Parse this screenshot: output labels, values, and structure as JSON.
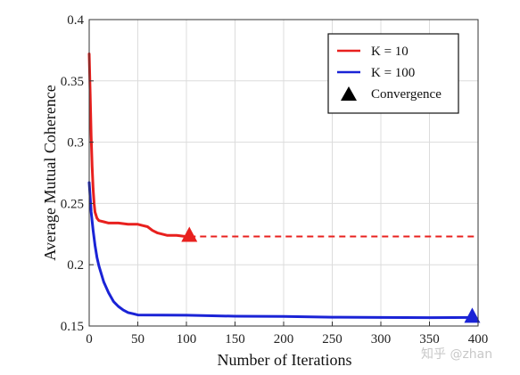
{
  "chart_data": {
    "type": "line",
    "xlabel": "Number of Iterations",
    "ylabel": "Average Mutual Coherence",
    "xlim": [
      0,
      400
    ],
    "ylim": [
      0.15,
      0.4
    ],
    "x_ticks": [
      "0",
      "50",
      "100",
      "150",
      "200",
      "250",
      "300",
      "350",
      "400"
    ],
    "y_ticks": [
      "0.15",
      "0.2",
      "0.25",
      "0.3",
      "0.35",
      "0.4"
    ],
    "grid": true,
    "legend_position": "top-right",
    "legend": [
      {
        "label": "K = 10",
        "marker": "line",
        "color": "#e8201e"
      },
      {
        "label": "K = 100",
        "marker": "line",
        "color": "#1a23d6"
      },
      {
        "label": "Convergence",
        "marker": "triangle",
        "color": "#000000"
      }
    ],
    "series": [
      {
        "name": "K = 10",
        "color": "#e8201e",
        "x": [
          0,
          1,
          2,
          3,
          4,
          5,
          6,
          8,
          10,
          15,
          20,
          30,
          40,
          50,
          55,
          60,
          65,
          70,
          75,
          80,
          90,
          100,
          103
        ],
        "y": [
          0.372,
          0.34,
          0.305,
          0.28,
          0.262,
          0.25,
          0.243,
          0.238,
          0.236,
          0.235,
          0.234,
          0.234,
          0.233,
          0.233,
          0.232,
          0.231,
          0.228,
          0.226,
          0.225,
          0.224,
          0.224,
          0.223,
          0.223
        ]
      },
      {
        "name": "K = 100",
        "color": "#1a23d6",
        "x": [
          0,
          1,
          2,
          4,
          6,
          8,
          10,
          15,
          20,
          25,
          30,
          35,
          40,
          45,
          50,
          100,
          150,
          200,
          250,
          300,
          350,
          394
        ],
        "y": [
          0.267,
          0.255,
          0.243,
          0.228,
          0.216,
          0.206,
          0.199,
          0.186,
          0.177,
          0.17,
          0.166,
          0.163,
          0.161,
          0.16,
          0.159,
          0.1588,
          0.158,
          0.1578,
          0.1572,
          0.157,
          0.1568,
          0.157
        ]
      }
    ],
    "continuation": {
      "series": "K = 10",
      "style": "dashed",
      "x": [
        103,
        400
      ],
      "y": [
        0.223,
        0.223
      ]
    },
    "convergence_points": [
      {
        "series": "K = 10",
        "x": 103,
        "y": 0.223,
        "color": "#e8201e"
      },
      {
        "series": "K = 100",
        "x": 394,
        "y": 0.157,
        "color": "#1a23d6"
      }
    ]
  },
  "watermark": "知乎 @zhan"
}
